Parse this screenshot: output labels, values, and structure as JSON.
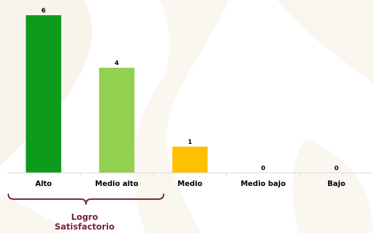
{
  "chart_data": {
    "type": "bar",
    "categories": [
      "Alto",
      "Medio alto",
      "Medio",
      "Medio bajo",
      "Bajo"
    ],
    "values": [
      6,
      4,
      1,
      0,
      0
    ],
    "colors": [
      "#0e9a1a",
      "#92d050",
      "#ffc000",
      "#ffc000",
      "#ffc000"
    ],
    "ylim": [
      0,
      6
    ],
    "grid": false,
    "data_labels": true
  },
  "annotation": {
    "line1": "Logro",
    "line2": "Satisfactorio",
    "bracket_color": "#7a1d3b",
    "spans_categories": [
      "Alto",
      "Medio alto"
    ]
  },
  "background": {
    "pattern_color": "#f6efe3"
  }
}
